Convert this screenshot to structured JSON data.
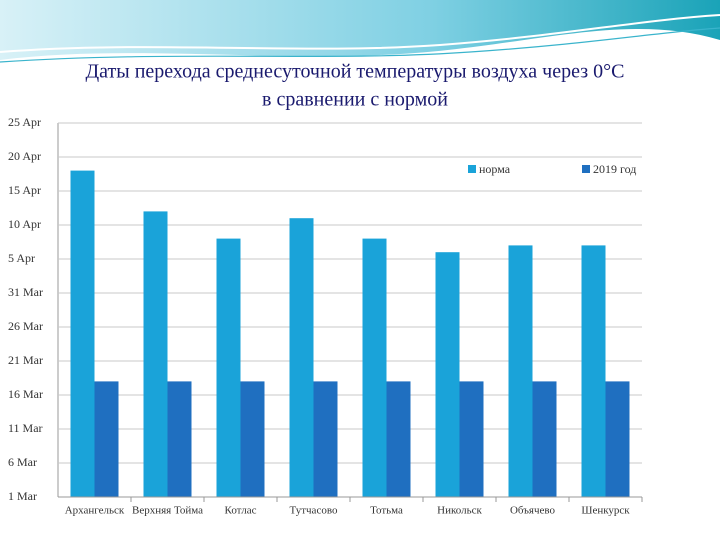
{
  "chart_data": {
    "type": "bar",
    "title": [
      "Даты перехода среднесуточной температуры воздуха через 0°C",
      "в сравнении с нормой"
    ],
    "categories": [
      "Архангельск",
      "Верхняя Тойма",
      "Котлас",
      "Тутчасово",
      "Тотьма",
      "Никольск",
      "Объячево",
      "Шенкурск"
    ],
    "series": [
      {
        "name": "норма",
        "color": "#1aa3d9",
        "values": [
          108,
          102,
          98,
          101,
          98,
          96,
          97,
          97
        ]
      },
      {
        "name": "2019 год",
        "color": "#1f6fc0",
        "values": [
          77,
          77,
          77,
          77,
          77,
          77,
          77,
          77
        ]
      }
    ],
    "ylim": [
      60,
      115
    ],
    "yticks": [
      {
        "value": 60,
        "label": "1 Mar"
      },
      {
        "value": 65,
        "label": "6 Mar"
      },
      {
        "value": 70,
        "label": "11 Mar"
      },
      {
        "value": 75,
        "label": "16 Mar"
      },
      {
        "value": 80,
        "label": "21 Mar"
      },
      {
        "value": 85,
        "label": "26 Mar"
      },
      {
        "value": 90,
        "label": "31 Mar"
      },
      {
        "value": 95,
        "label": "5 Apr"
      },
      {
        "value": 100,
        "label": "10 Apr"
      },
      {
        "value": 105,
        "label": "15 Apr"
      },
      {
        "value": 110,
        "label": "20 Apr"
      },
      {
        "value": 115,
        "label": "25 Apr"
      }
    ],
    "grid": true,
    "legend": "top-right"
  }
}
